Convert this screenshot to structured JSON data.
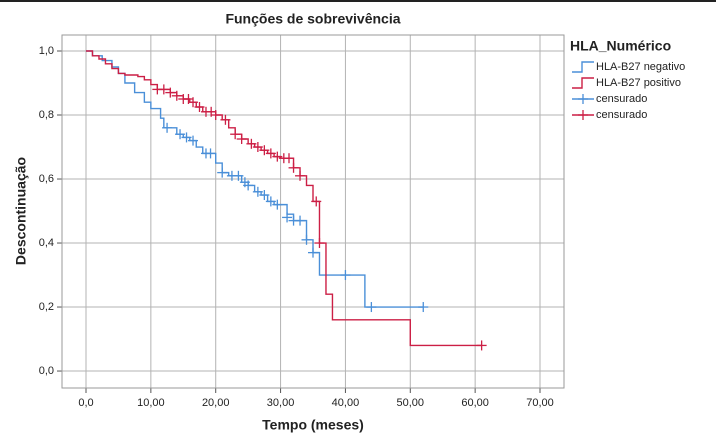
{
  "chart_data": {
    "type": "survival",
    "title": "Funções de sobrevivência",
    "x_label": "Tempo (meses)",
    "y_label": "Descontinuação",
    "legend_title": "HLA_Numérico",
    "xlim": [
      -3.7,
      73.7
    ],
    "ylim": [
      -0.053,
      1.05
    ],
    "xticks": [
      {
        "value": 0,
        "label": "0,0"
      },
      {
        "value": 10,
        "label": "10,00"
      },
      {
        "value": 20,
        "label": "20,00"
      },
      {
        "value": 30,
        "label": "30,00"
      },
      {
        "value": 40,
        "label": "40,00"
      },
      {
        "value": 50,
        "label": "50,00"
      },
      {
        "value": 60,
        "label": "60,00"
      },
      {
        "value": 70,
        "label": "70,00"
      }
    ],
    "yticks": [
      {
        "value": 0,
        "label": "0,0"
      },
      {
        "value": 0.2,
        "label": "0,2"
      },
      {
        "value": 0.4,
        "label": "0,4"
      },
      {
        "value": 0.6,
        "label": "0,6"
      },
      {
        "value": 0.8,
        "label": "0,8"
      },
      {
        "value": 1,
        "label": "1,0"
      }
    ],
    "grid": true,
    "series": [
      {
        "name": "HLA-B27 negativo",
        "color": "#4a8fd8",
        "drawstyle": "steps-post",
        "x": [
          0,
          1,
          2.5,
          4,
          5,
          6,
          7.5,
          9,
          10,
          11.5,
          12,
          14,
          15,
          16,
          17,
          18,
          20,
          21,
          22,
          24,
          25,
          26,
          27,
          28,
          29,
          31,
          32,
          34,
          35,
          36,
          43,
          52
        ],
        "values": [
          1.0,
          0.985,
          0.97,
          0.95,
          0.93,
          0.9,
          0.87,
          0.84,
          0.82,
          0.79,
          0.76,
          0.74,
          0.73,
          0.72,
          0.7,
          0.68,
          0.65,
          0.62,
          0.61,
          0.59,
          0.58,
          0.56,
          0.55,
          0.53,
          0.52,
          0.49,
          0.47,
          0.41,
          0.37,
          0.3,
          0.2,
          0.2
        ]
      },
      {
        "name": "HLA-B27 positivo",
        "color": "#cc1f45",
        "drawstyle": "steps-post",
        "x": [
          0,
          1,
          2,
          3,
          4,
          5,
          6,
          8,
          9,
          10,
          11,
          13,
          14,
          15,
          16,
          17,
          18,
          20,
          21,
          22,
          23,
          24,
          25,
          26,
          27,
          28,
          29,
          30,
          32,
          33,
          34,
          35,
          36,
          37,
          38,
          50,
          61
        ],
        "values": [
          1.0,
          0.985,
          0.975,
          0.96,
          0.945,
          0.93,
          0.925,
          0.92,
          0.91,
          0.895,
          0.88,
          0.87,
          0.86,
          0.85,
          0.84,
          0.825,
          0.81,
          0.8,
          0.785,
          0.76,
          0.74,
          0.725,
          0.71,
          0.7,
          0.69,
          0.68,
          0.67,
          0.665,
          0.635,
          0.61,
          0.58,
          0.53,
          0.4,
          0.24,
          0.16,
          0.08,
          0.08
        ]
      },
      {
        "name": "censurado",
        "color": "#4a8fd8",
        "marker": "+",
        "x": [
          12.5,
          14.5,
          15.5,
          16.5,
          18.5,
          19.2,
          21,
          22.5,
          23.5,
          24.5,
          25,
          26.5,
          27.5,
          28.5,
          29.5,
          31,
          32,
          33,
          34,
          35,
          40,
          44,
          52
        ],
        "values": [
          0.76,
          0.74,
          0.73,
          0.72,
          0.68,
          0.68,
          0.62,
          0.61,
          0.61,
          0.59,
          0.58,
          0.56,
          0.55,
          0.53,
          0.52,
          0.48,
          0.47,
          0.47,
          0.41,
          0.37,
          0.3,
          0.2,
          0.2
        ]
      },
      {
        "name": "censurado",
        "color": "#cc1f45",
        "marker": "+",
        "x": [
          11,
          12,
          13,
          14,
          15,
          15.8,
          16.5,
          17.5,
          18.5,
          19.3,
          20,
          21.5,
          23,
          24,
          25.5,
          26.5,
          27.5,
          28.5,
          29.5,
          30.5,
          31.3,
          32,
          33,
          35.5,
          36,
          61
        ],
        "values": [
          0.88,
          0.88,
          0.87,
          0.86,
          0.85,
          0.85,
          0.84,
          0.825,
          0.81,
          0.81,
          0.8,
          0.785,
          0.74,
          0.725,
          0.71,
          0.7,
          0.69,
          0.68,
          0.67,
          0.665,
          0.665,
          0.635,
          0.61,
          0.53,
          0.4,
          0.08
        ]
      }
    ]
  }
}
